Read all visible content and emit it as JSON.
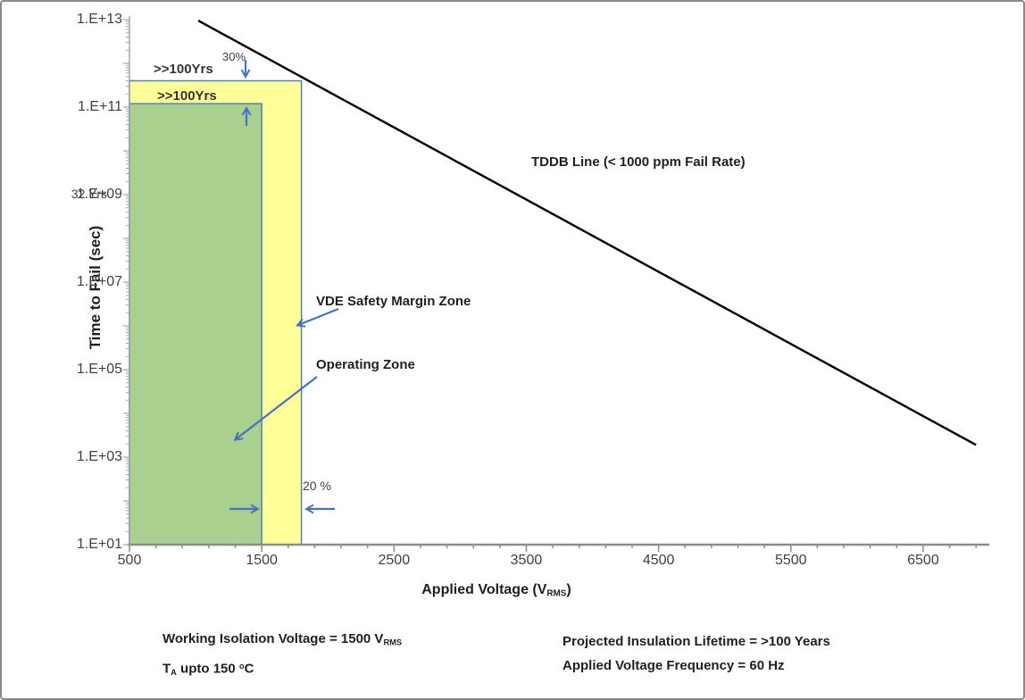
{
  "chart_data": {
    "type": "line",
    "grid": false,
    "legend": false,
    "x_axis": {
      "label_segments": [
        {
          "t": "Applied Voltage (V"
        },
        {
          "t": "RMS",
          "s": "sub"
        },
        {
          "t": ")"
        }
      ],
      "min": 500,
      "max": 7000,
      "major_tick_step": 1000,
      "minor_tick_step": 200,
      "ticks": [
        {
          "label": "500",
          "value": 500
        },
        {
          "label": "1500",
          "value": 1500
        },
        {
          "label": "2500",
          "value": 2500
        },
        {
          "label": "3500",
          "value": 3500
        },
        {
          "label": "4500",
          "value": 4500
        },
        {
          "label": "5500",
          "value": 5500
        },
        {
          "label": "6500",
          "value": 6500
        }
      ]
    },
    "y_axis": {
      "label": "Time to Fail (sec)",
      "scale": "log",
      "min": 10,
      "max": 10000000000000.0,
      "note": "32 Yrs",
      "note_value": 1000000000.0,
      "ticks": [
        {
          "label": "1.E+13",
          "value": 10000000000000.0
        },
        {
          "label": "1.E+11",
          "value": 100000000000.0
        },
        {
          "label": "1.E+09",
          "value": 1000000000.0
        },
        {
          "label": "1.E+07",
          "value": 10000000.0
        },
        {
          "label": "1.E+05",
          "value": 100000.0
        },
        {
          "label": "1.E+03",
          "value": 1000.0
        },
        {
          "label": "1.E+01",
          "value": 10
        }
      ]
    },
    "series": [
      {
        "name": "TDDB Line (< 1000 ppm Fail Rate)",
        "color": "#000000",
        "points": [
          [
            1020,
            9500000000000.0
          ],
          [
            6900,
            1900.0
          ]
        ]
      }
    ],
    "zones": [
      {
        "name": "VDE Safety Margin Zone",
        "x": [
          500,
          1800
        ],
        "y": [
          10,
          400000000000.0
        ],
        "fill": "#FFFF99",
        "stroke": "#4F81BD",
        "label": ">>100Yrs"
      },
      {
        "name": "Operating Zone",
        "x": [
          500,
          1500
        ],
        "y": [
          10,
          120000000000.0
        ],
        "fill": "#A9D08E",
        "stroke": "#4F81BD",
        "label": ">>100Yrs"
      }
    ],
    "annotations": {
      "lifetime_margin": "30%",
      "voltage_margin": "20 %"
    }
  },
  "footnotes": {
    "left": [
      [
        {
          "t": "Working Isolation Voltage = 1500 V"
        },
        {
          "t": "RMS",
          "s": "sub"
        }
      ],
      [
        {
          "t": "T"
        },
        {
          "t": "A",
          "s": "sub"
        },
        {
          "t": " upto 150 "
        },
        {
          "t": "o",
          "s": "sup"
        },
        {
          "t": "C"
        }
      ]
    ],
    "right": [
      [
        {
          "t": "Projected Insulation Lifetime = >100 Years"
        }
      ],
      [
        {
          "t": "Applied Voltage Frequency = 60 Hz"
        }
      ]
    ]
  },
  "colors": {
    "arrow_blue": "#4472C4",
    "zone_border": "#4F81BD",
    "x_axis_gray": "#8C8C8C",
    "y_axis_gray": "#A6A6A6",
    "tick_text": "#404040"
  }
}
